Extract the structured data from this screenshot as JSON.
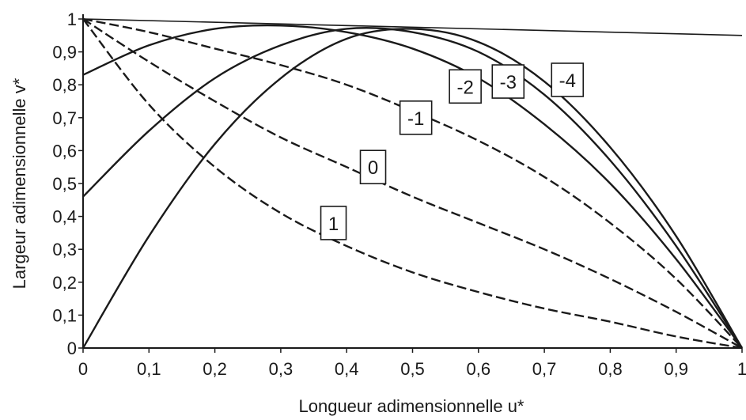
{
  "chart_data": {
    "type": "line",
    "xlabel": "Longueur adimensionnelle u*",
    "ylabel": "Largeur adimensionnelle v*",
    "xlim": [
      0,
      1
    ],
    "ylim": [
      0,
      1
    ],
    "x_ticks": [
      "0",
      "0,1",
      "0,2",
      "0,3",
      "0,4",
      "0,5",
      "0,6",
      "0,7",
      "0,8",
      "0,9",
      "1"
    ],
    "y_ticks": [
      "0",
      "0,1",
      "0,2",
      "0,3",
      "0,4",
      "0,5",
      "0,6",
      "0,7",
      "0,8",
      "0,9",
      "1"
    ],
    "grid": false,
    "reference_line": {
      "x": [
        0,
        1
      ],
      "y": [
        1,
        0.95
      ]
    },
    "series": [
      {
        "name": "1",
        "style": "dashed",
        "x": [
          0,
          0.1,
          0.2,
          0.3,
          0.4,
          0.5,
          0.6,
          0.7,
          0.8,
          0.9,
          1.0
        ],
        "y": [
          1.0,
          0.74,
          0.55,
          0.41,
          0.31,
          0.23,
          0.17,
          0.12,
          0.08,
          0.035,
          0.0
        ]
      },
      {
        "name": "0",
        "style": "dashed",
        "x": [
          0,
          0.1,
          0.2,
          0.3,
          0.4,
          0.5,
          0.6,
          0.7,
          0.8,
          0.9,
          1.0
        ],
        "y": [
          1.0,
          0.87,
          0.75,
          0.64,
          0.55,
          0.46,
          0.38,
          0.3,
          0.21,
          0.11,
          0.0
        ]
      },
      {
        "name": "-1",
        "style": "dashed",
        "x": [
          0,
          0.1,
          0.2,
          0.3,
          0.4,
          0.5,
          0.6,
          0.7,
          0.8,
          0.9,
          1.0
        ],
        "y": [
          1.0,
          0.96,
          0.91,
          0.86,
          0.8,
          0.72,
          0.63,
          0.52,
          0.38,
          0.21,
          0.0
        ]
      },
      {
        "name": "-2",
        "style": "solid",
        "x": [
          0,
          0.1,
          0.2,
          0.3,
          0.4,
          0.5,
          0.6,
          0.7,
          0.8,
          0.9,
          1.0
        ],
        "y": [
          0.83,
          0.92,
          0.97,
          0.98,
          0.96,
          0.91,
          0.82,
          0.68,
          0.5,
          0.27,
          0.0
        ]
      },
      {
        "name": "-3",
        "style": "solid",
        "x": [
          0,
          0.1,
          0.2,
          0.3,
          0.4,
          0.5,
          0.6,
          0.7,
          0.8,
          0.9,
          1.0
        ],
        "y": [
          0.46,
          0.66,
          0.82,
          0.92,
          0.97,
          0.96,
          0.9,
          0.77,
          0.57,
          0.31,
          0.0
        ]
      },
      {
        "name": "-4",
        "style": "solid",
        "x": [
          0,
          0.1,
          0.2,
          0.3,
          0.4,
          0.5,
          0.6,
          0.7,
          0.8,
          0.9,
          1.0
        ],
        "y": [
          0.0,
          0.34,
          0.62,
          0.82,
          0.94,
          0.97,
          0.93,
          0.81,
          0.61,
          0.34,
          0.0
        ]
      }
    ],
    "curve_labels": [
      {
        "text": "1",
        "x": 0.38,
        "y": 0.38
      },
      {
        "text": "0",
        "x": 0.44,
        "y": 0.55
      },
      {
        "text": "-1",
        "x": 0.505,
        "y": 0.7
      },
      {
        "text": "-2",
        "x": 0.58,
        "y": 0.795
      },
      {
        "text": "-3",
        "x": 0.645,
        "y": 0.81
      },
      {
        "text": "-4",
        "x": 0.735,
        "y": 0.815
      }
    ]
  }
}
